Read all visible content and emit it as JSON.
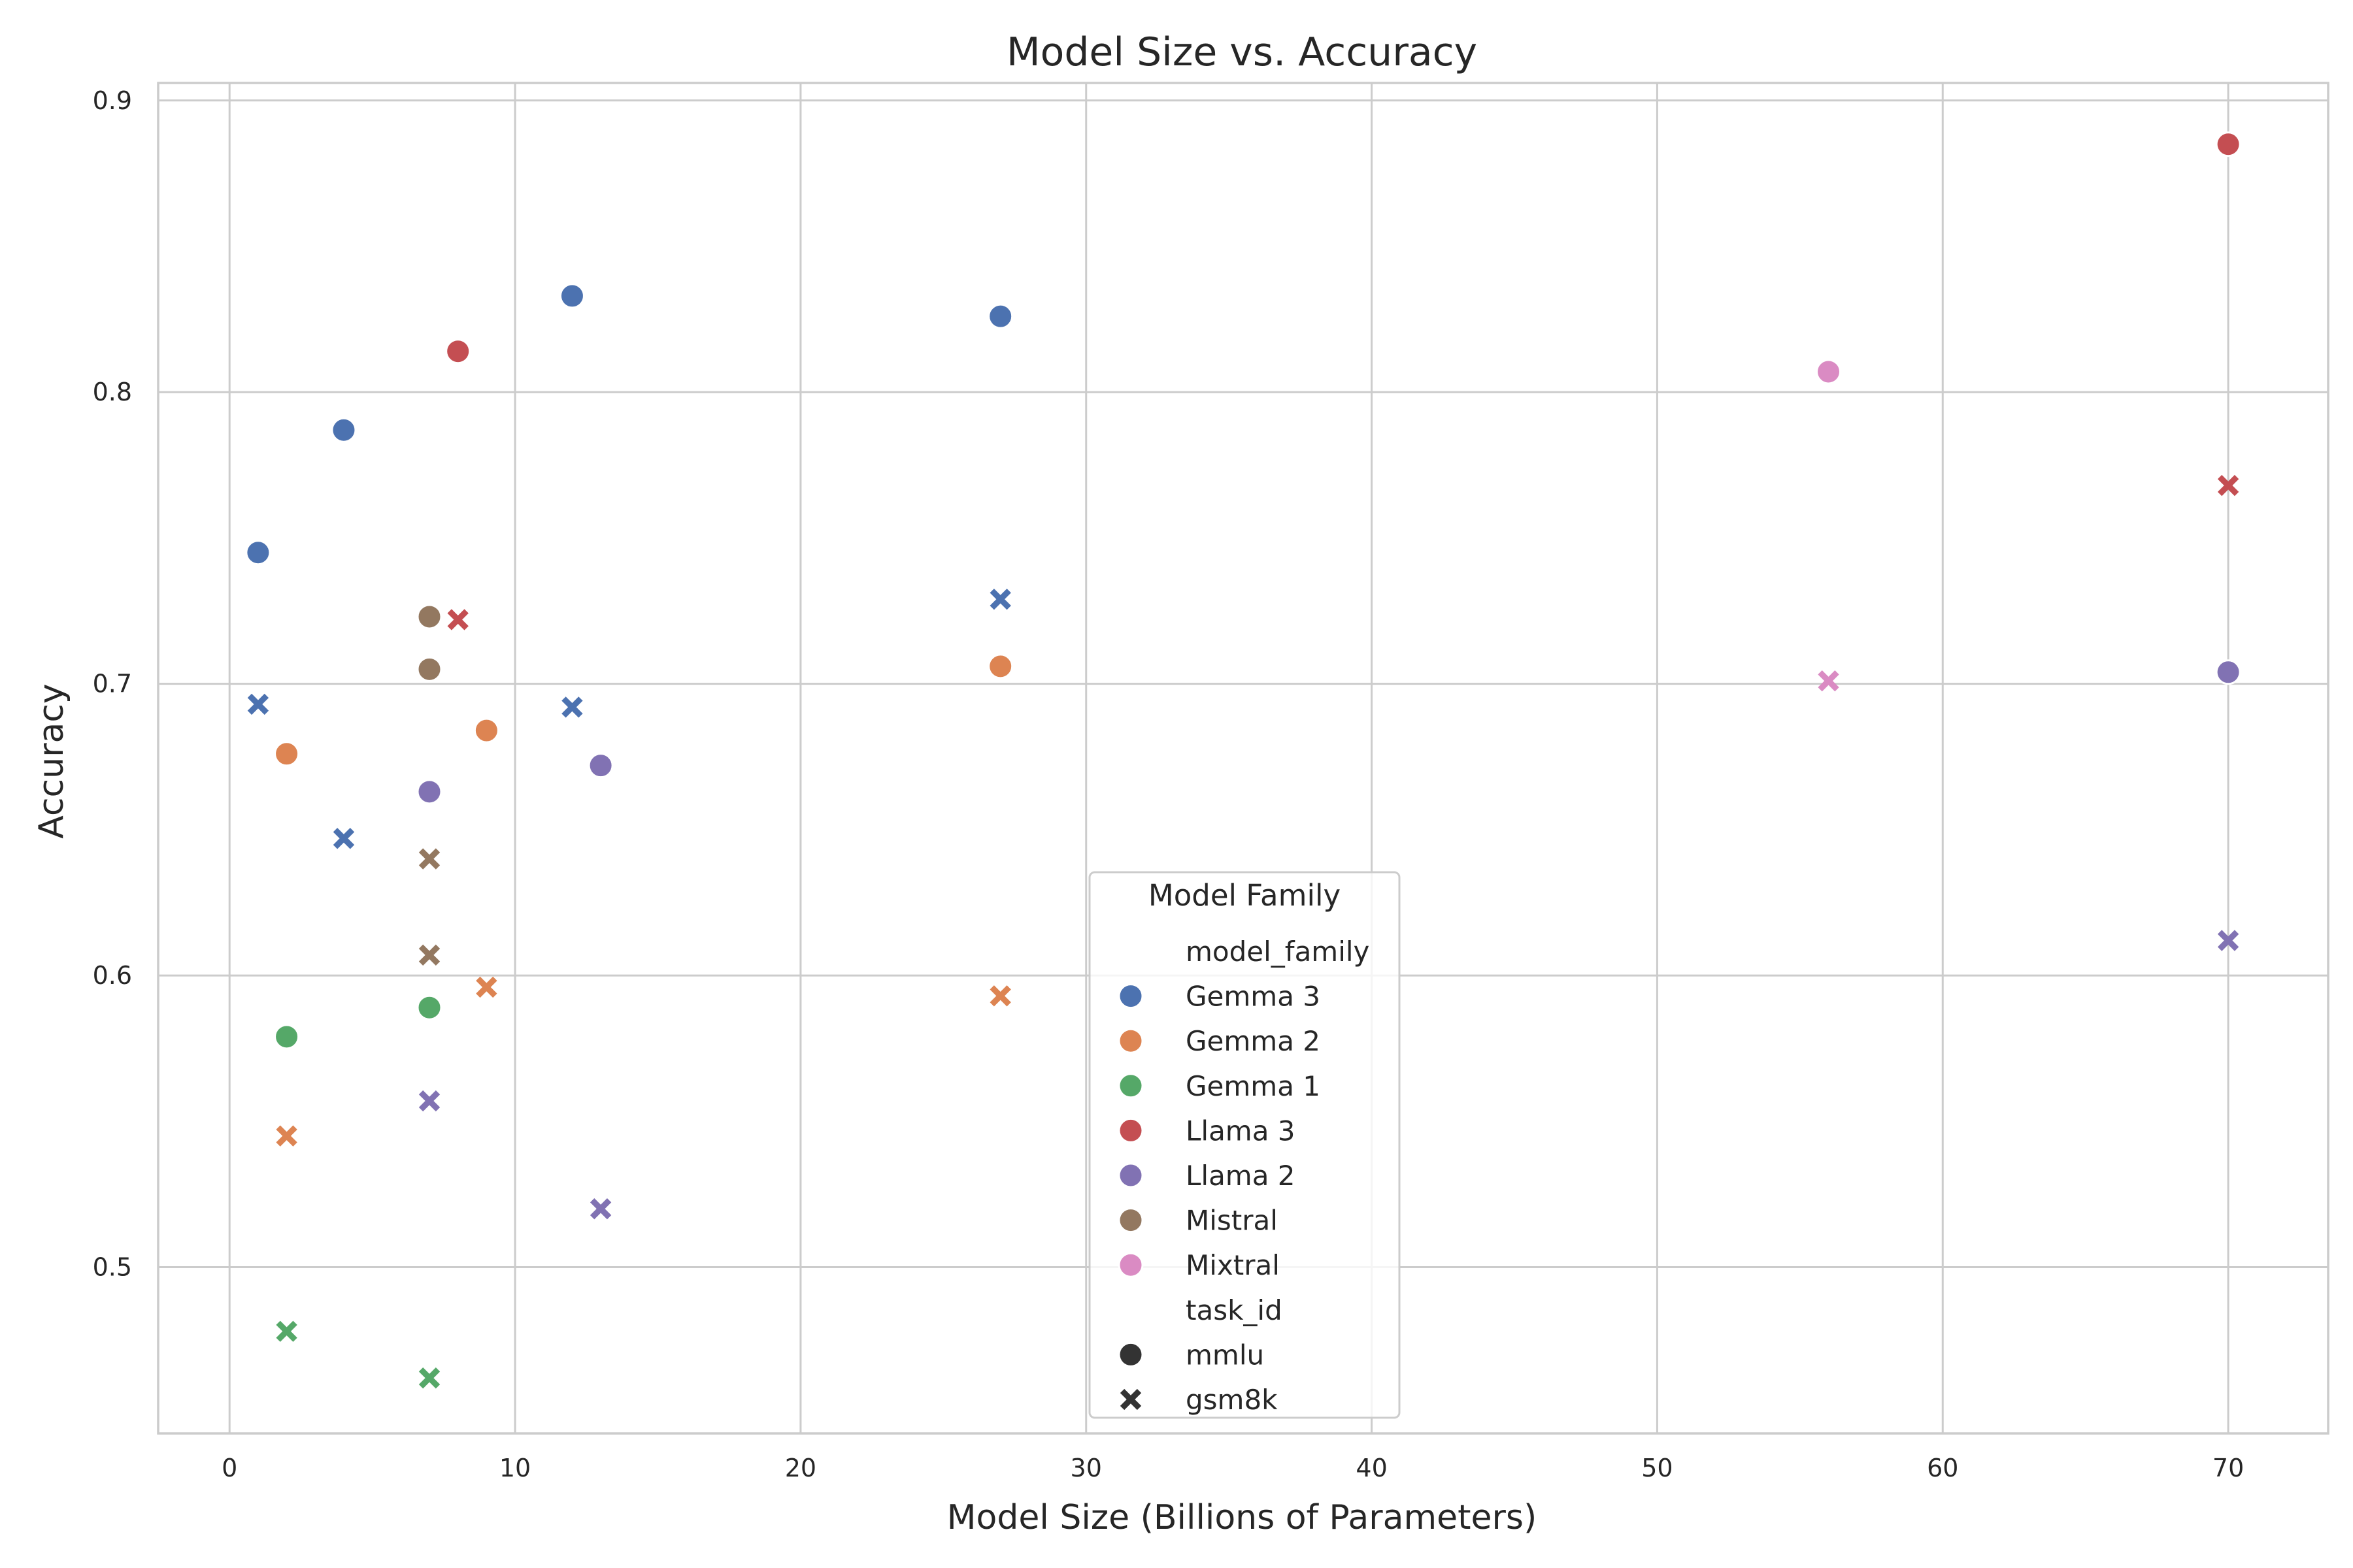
{
  "chart_data": {
    "type": "scatter",
    "title": "Model Size vs. Accuracy",
    "xlabel": "Model Size (Billions of Parameters)",
    "ylabel": "Accuracy",
    "xlim": [
      -2.5,
      73.5
    ],
    "ylim": [
      0.443,
      0.906
    ],
    "xticks": [
      0,
      10,
      20,
      30,
      40,
      50,
      60,
      70
    ],
    "yticks": [
      0.5,
      0.6,
      0.7,
      0.8,
      0.9
    ],
    "xtick_labels": [
      "0",
      "10",
      "20",
      "30",
      "40",
      "50",
      "60",
      "70"
    ],
    "ytick_labels": [
      "0.5",
      "0.6",
      "0.7",
      "0.8",
      "0.9"
    ],
    "grid": true,
    "legend": {
      "title": "Model Family",
      "placement": "lower-center",
      "hue_heading": "model_family",
      "style_heading": "task_id",
      "families": [
        {
          "name": "Gemma 3",
          "color": "#4c72b0"
        },
        {
          "name": "Gemma 2",
          "color": "#dd8452"
        },
        {
          "name": "Gemma 1",
          "color": "#55a868"
        },
        {
          "name": "Llama 3",
          "color": "#c44e52"
        },
        {
          "name": "Llama 2",
          "color": "#8172b3"
        },
        {
          "name": "Mistral",
          "color": "#937860"
        },
        {
          "name": "Mixtral",
          "color": "#da8bc3"
        }
      ],
      "tasks": [
        {
          "name": "mmlu",
          "marker": "circle"
        },
        {
          "name": "gsm8k",
          "marker": "x"
        }
      ]
    },
    "series": [
      {
        "family": "Gemma 3",
        "task": "mmlu",
        "points": [
          [
            1,
            0.745
          ],
          [
            4,
            0.787
          ],
          [
            12,
            0.833
          ],
          [
            27,
            0.826
          ]
        ]
      },
      {
        "family": "Gemma 3",
        "task": "gsm8k",
        "points": [
          [
            1,
            0.693
          ],
          [
            4,
            0.647
          ],
          [
            12,
            0.692
          ],
          [
            27,
            0.729
          ]
        ]
      },
      {
        "family": "Gemma 2",
        "task": "mmlu",
        "points": [
          [
            2,
            0.676
          ],
          [
            9,
            0.684
          ],
          [
            27,
            0.706
          ]
        ]
      },
      {
        "family": "Gemma 2",
        "task": "gsm8k",
        "points": [
          [
            2,
            0.545
          ],
          [
            9,
            0.596
          ],
          [
            27,
            0.593
          ]
        ]
      },
      {
        "family": "Gemma 1",
        "task": "mmlu",
        "points": [
          [
            2,
            0.579
          ],
          [
            7,
            0.589
          ]
        ]
      },
      {
        "family": "Gemma 1",
        "task": "gsm8k",
        "points": [
          [
            2,
            0.478
          ],
          [
            7,
            0.462
          ]
        ]
      },
      {
        "family": "Llama 3",
        "task": "mmlu",
        "points": [
          [
            8,
            0.814
          ],
          [
            70,
            0.885
          ]
        ]
      },
      {
        "family": "Llama 3",
        "task": "gsm8k",
        "points": [
          [
            8,
            0.722
          ],
          [
            70,
            0.768
          ]
        ]
      },
      {
        "family": "Llama 2",
        "task": "mmlu",
        "points": [
          [
            7,
            0.663
          ],
          [
            13,
            0.672
          ],
          [
            70,
            0.704
          ]
        ]
      },
      {
        "family": "Llama 2",
        "task": "gsm8k",
        "points": [
          [
            7,
            0.557
          ],
          [
            13,
            0.52
          ],
          [
            70,
            0.612
          ]
        ]
      },
      {
        "family": "Mistral",
        "task": "mmlu",
        "points": [
          [
            7,
            0.723
          ],
          [
            7,
            0.705
          ]
        ]
      },
      {
        "family": "Mistral",
        "task": "gsm8k",
        "points": [
          [
            7,
            0.64
          ],
          [
            7,
            0.607
          ]
        ]
      },
      {
        "family": "Mixtral",
        "task": "mmlu",
        "points": [
          [
            56,
            0.807
          ]
        ]
      },
      {
        "family": "Mixtral",
        "task": "gsm8k",
        "points": [
          [
            56,
            0.701
          ]
        ]
      }
    ]
  }
}
